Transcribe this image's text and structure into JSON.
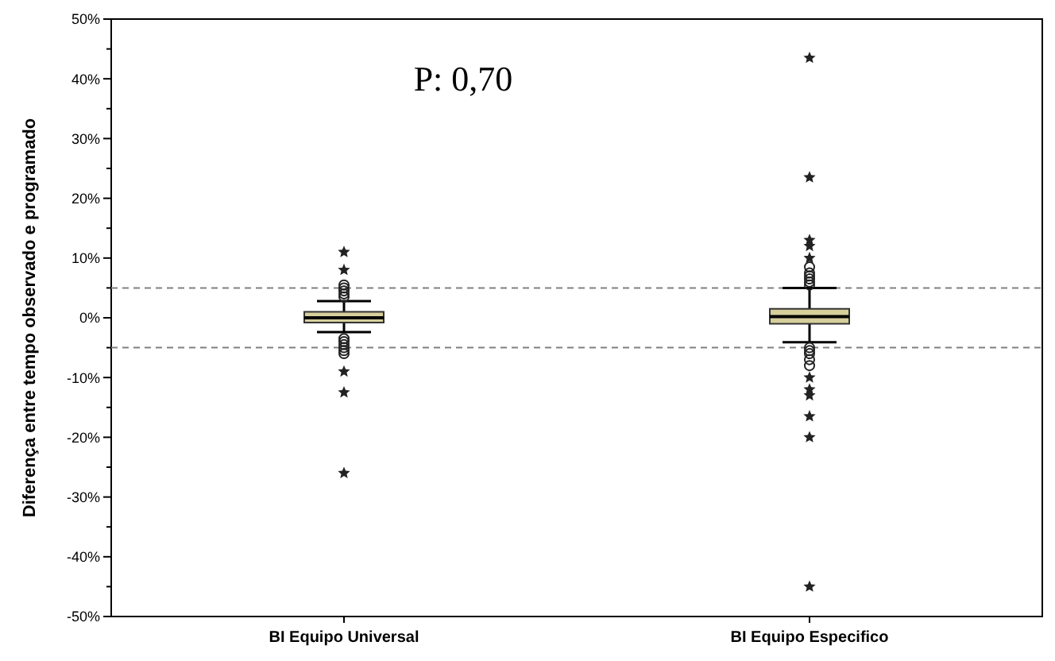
{
  "chart_data": {
    "type": "box",
    "ylabel": "Diferença entre tempo observado e programado",
    "categories": [
      "BI Equipo Universal",
      "BI Equipo Especifico"
    ],
    "boxes": [
      {
        "low": -2.4,
        "q1": -0.8,
        "median": 0,
        "q3": 1,
        "high": 2.8,
        "outliers": [
          11,
          8,
          5.5,
          5,
          4.5,
          4,
          3.5,
          -3.5,
          -4,
          -4.5,
          -5,
          -5.5,
          -6,
          -9,
          -12.5,
          -26
        ]
      },
      {
        "low": -4.1,
        "q1": -1,
        "median": 0.2,
        "q3": 1.5,
        "high": 5,
        "outliers": [
          43.5,
          23.5,
          13,
          12,
          10,
          8.5,
          7.5,
          7,
          6.5,
          6,
          5.5,
          -5,
          -5.5,
          -6,
          -7,
          -8,
          -10,
          -12,
          -13,
          -16.5,
          -20,
          -45
        ]
      }
    ],
    "color": "#d6cf9c",
    "ylim": [
      -50,
      50
    ],
    "yticks": [
      {
        "value": -50,
        "label": "-50%"
      },
      {
        "value": -45,
        "label": null
      },
      {
        "value": -40,
        "label": "-40%"
      },
      {
        "value": -35,
        "label": null
      },
      {
        "value": -30,
        "label": "-30%"
      },
      {
        "value": -25,
        "label": null
      },
      {
        "value": -20,
        "label": "-20%"
      },
      {
        "value": -15,
        "label": null
      },
      {
        "value": -10,
        "label": "-10%"
      },
      {
        "value": -5,
        "label": null
      },
      {
        "value": 0,
        "label": "0%"
      },
      {
        "value": 5,
        "label": null
      },
      {
        "value": 10,
        "label": "10%"
      },
      {
        "value": 15,
        "label": null
      },
      {
        "value": 20,
        "label": "20%"
      },
      {
        "value": 25,
        "label": null
      },
      {
        "value": 30,
        "label": "30%"
      },
      {
        "value": 35,
        "label": null
      },
      {
        "value": 40,
        "label": "40%"
      },
      {
        "value": 45,
        "label": null
      },
      {
        "value": 50,
        "label": "50%"
      }
    ],
    "ref_lines": [
      {
        "axis": "y",
        "value": 5,
        "line_style": "dashed",
        "color": "#808080"
      },
      {
        "axis": "y",
        "value": -5,
        "line_style": "dashed",
        "color": "#808080"
      }
    ],
    "annotations": [
      "P: 0,70"
    ]
  }
}
